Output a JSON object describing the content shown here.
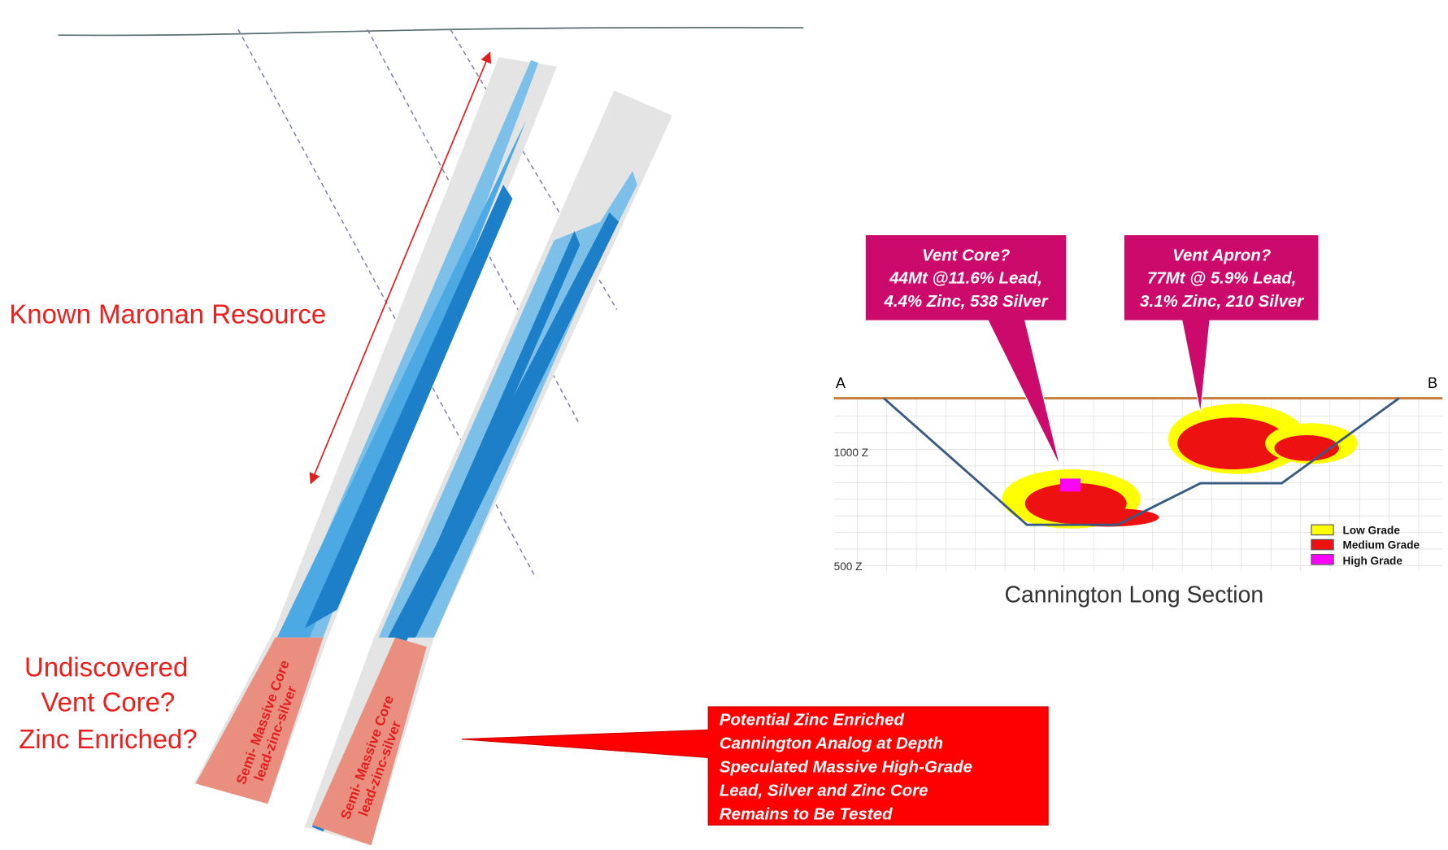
{
  "left_panel": {
    "resource_label": "Known Maronan Resource",
    "undiscovered_lines": [
      "Undiscovered",
      "Vent Core?",
      "Zinc Enriched?"
    ],
    "core_label_left": [
      "Semi- Massive Core",
      "lead-zinc-silver"
    ],
    "core_label_right": [
      "Semi- Massive Core",
      "lead-zinc-silver"
    ],
    "callout_lines": [
      "Potential Zinc Enriched",
      "Cannington Analog at Depth",
      "Speculated Massive High-Grade",
      "Lead,  Silver and Zinc Core",
      "Remains to Be Tested"
    ]
  },
  "right_panel": {
    "vent_core": [
      "Vent Core?",
      "44Mt @11.6% Lead,",
      "4.4%  Zinc, 538 Silver"
    ],
    "vent_apron": [
      "Vent Apron?",
      "77Mt @ 5.9% Lead,",
      "3.1% Zinc, 210 Silver"
    ],
    "section_ends": [
      "A",
      "B"
    ],
    "depth_labels": [
      "1000 Z",
      "500 Z"
    ],
    "legend": [
      "Low Grade",
      "Medium Grade",
      "High Grade"
    ],
    "caption": "Cannington Long Section"
  }
}
